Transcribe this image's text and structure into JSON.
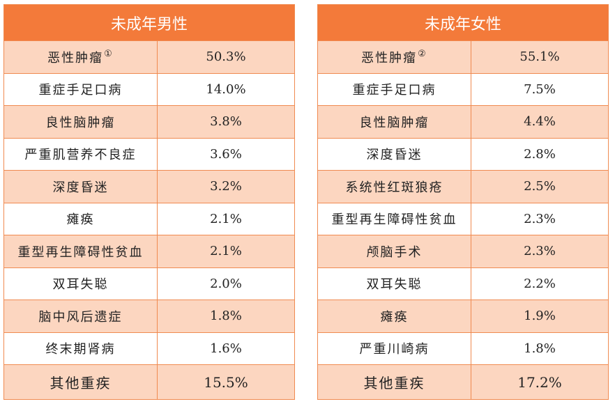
{
  "tables": [
    {
      "title": "未成年男性",
      "rows": [
        {
          "label": "恶性肿瘤",
          "note": "①",
          "value": "50.3%"
        },
        {
          "label": "重症手足口病",
          "value": "14.0%"
        },
        {
          "label": "良性脑肿瘤",
          "value": "3.8%"
        },
        {
          "label": "严重肌营养不良症",
          "value": "3.6%"
        },
        {
          "label": "深度昏迷",
          "value": "3.2%"
        },
        {
          "label": "瘫痪",
          "value": "2.1%"
        },
        {
          "label": "重型再生障碍性贫血",
          "value": "2.1%"
        },
        {
          "label": "双耳失聪",
          "value": "2.0%"
        },
        {
          "label": "脑中风后遗症",
          "value": "1.8%"
        },
        {
          "label": "终末期肾病",
          "value": "1.6%"
        },
        {
          "label": "其他重疾",
          "value": "15.5%"
        }
      ]
    },
    {
      "title": "未成年女性",
      "rows": [
        {
          "label": "恶性肿瘤",
          "note": "②",
          "value": "55.1%"
        },
        {
          "label": "重症手足口病",
          "value": "7.5%"
        },
        {
          "label": "良性脑肿瘤",
          "value": "4.4%"
        },
        {
          "label": "深度昏迷",
          "value": "2.8%"
        },
        {
          "label": "系统性红斑狼疮",
          "value": "2.5%"
        },
        {
          "label": "重型再生障碍性贫血",
          "value": "2.3%"
        },
        {
          "label": "颅脑手术",
          "value": "2.3%"
        },
        {
          "label": "双耳失聪",
          "value": "2.2%"
        },
        {
          "label": "瘫痪",
          "value": "1.9%"
        },
        {
          "label": "严重川崎病",
          "value": "1.8%"
        },
        {
          "label": "其他重疾",
          "value": "17.2%"
        }
      ]
    }
  ]
}
